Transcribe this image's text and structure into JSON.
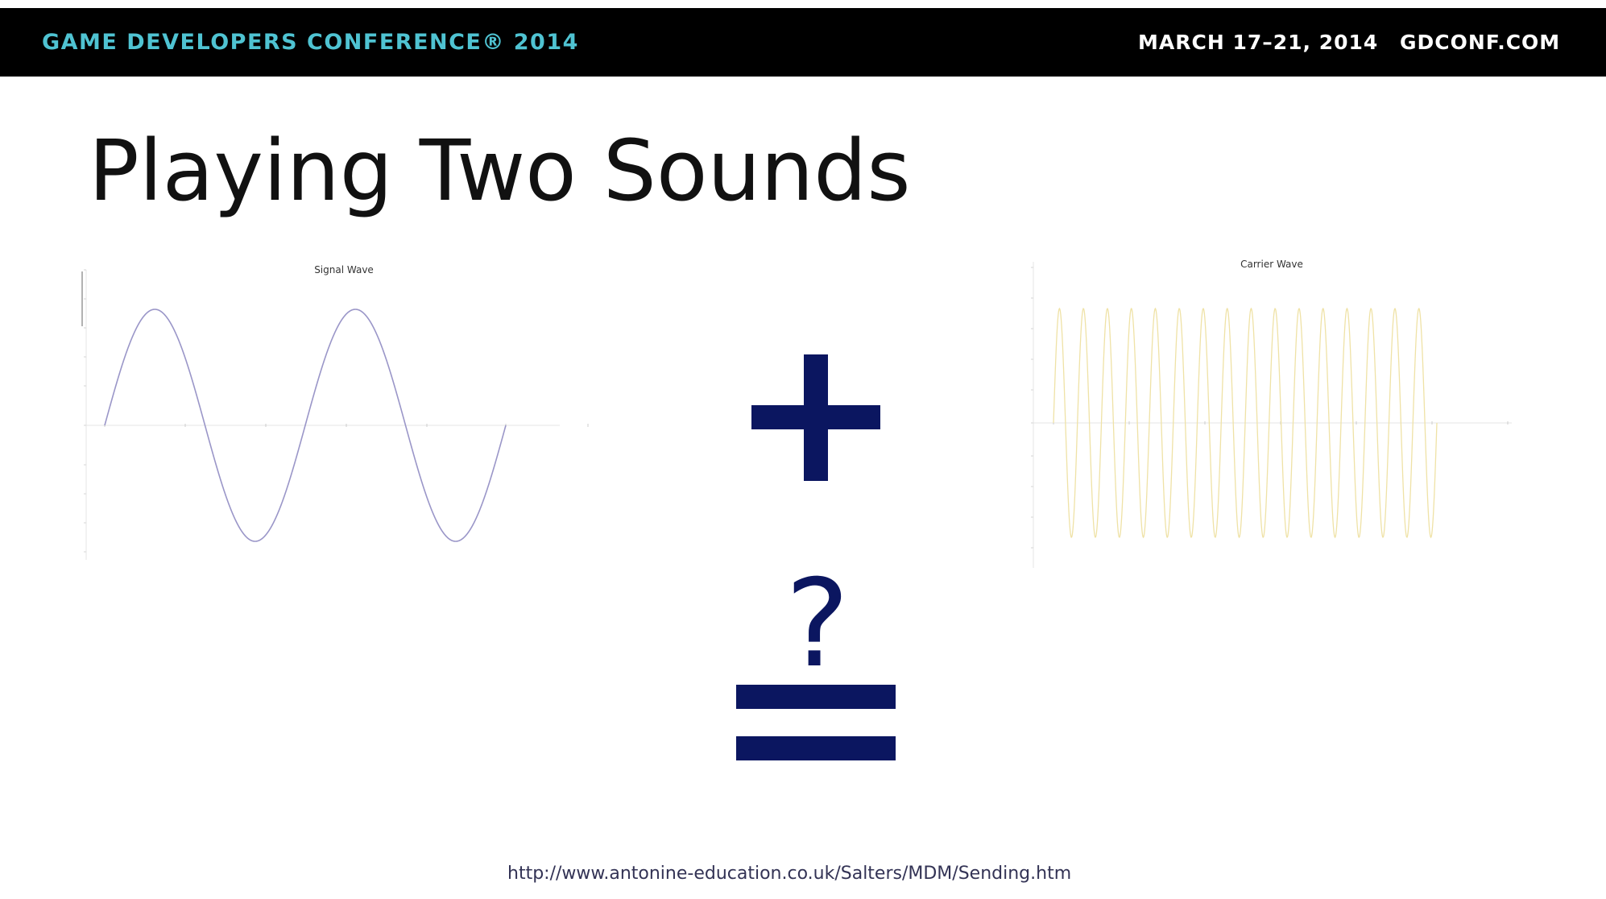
{
  "header": {
    "conference": "GAME DEVELOPERS CONFERENCE® 2014",
    "dates": "MARCH 17–21, 2014",
    "website": "GDCONF.COM",
    "colors": {
      "background": "#000000",
      "conference": "#4fc3d2",
      "right_text": "#ffffff"
    }
  },
  "slide": {
    "title": "Playing Two Sounds",
    "question_symbol": "?",
    "source_url": "http://www.antonine-education.co.uk/Salters/MDM/Sending.htm",
    "symbol_color": "#0b1660"
  },
  "chart_data": [
    {
      "type": "line",
      "title": "Signal Wave",
      "cycles": 2,
      "amplitude": 1,
      "line_color": "#9a96c8",
      "grid": false
    },
    {
      "type": "line",
      "title": "Carrier Wave",
      "cycles": 16,
      "amplitude": 1,
      "line_color": "#efe2a6",
      "grid": false
    }
  ]
}
